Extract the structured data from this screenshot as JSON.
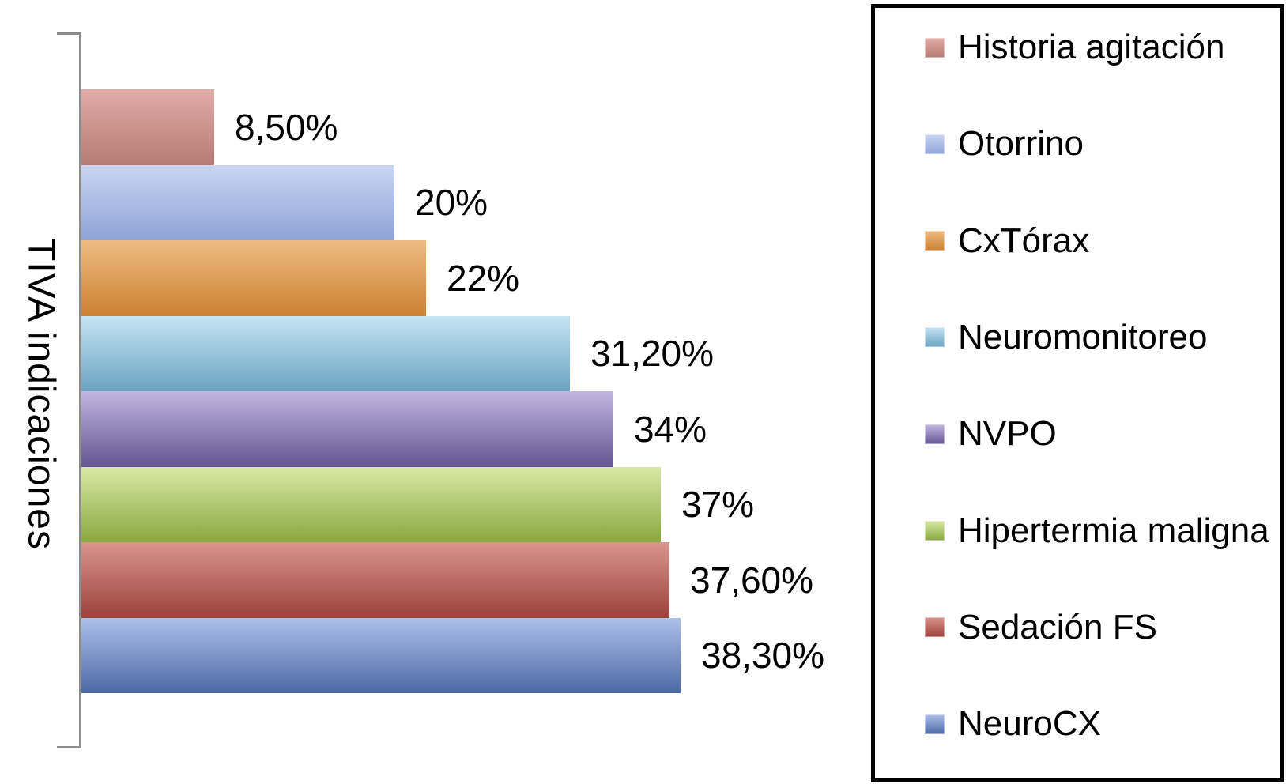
{
  "chart_data": {
    "type": "bar",
    "orientation": "horizontal",
    "title": "",
    "xlabel": "",
    "ylabel": "TIVA indicaciones",
    "xlim": [
      0,
      40
    ],
    "grid": false,
    "legend_position": "right",
    "categories": [
      "Historia agitación",
      "Otorrino",
      "CxTórax",
      "Neuromonitoreo",
      "NVPO",
      "Hipertermia maligna",
      "Sedación FS",
      "NeuroCX"
    ],
    "values": [
      8.5,
      20,
      22,
      31.2,
      34,
      37,
      37.6,
      38.3
    ],
    "value_labels": [
      "8,50%",
      "20%",
      "22%",
      "31,20%",
      "34%",
      "37%",
      "37,60%",
      "38,30%"
    ],
    "bar_colors": [
      {
        "top": "#e2aba6",
        "bottom": "#b57c74"
      },
      {
        "top": "#c9d5f2",
        "bottom": "#8fa3d6"
      },
      {
        "top": "#eebc82",
        "bottom": "#cd8031"
      },
      {
        "top": "#c5e4f4",
        "bottom": "#6ba3c1"
      },
      {
        "top": "#c2b6e2",
        "bottom": "#645590"
      },
      {
        "top": "#d9e9a5",
        "bottom": "#88a840"
      },
      {
        "top": "#da948e",
        "bottom": "#9c423b"
      },
      {
        "top": "#adc0ea",
        "bottom": "#4c69a6"
      }
    ],
    "axis_color": "#8c8c8c",
    "text_color": "#000000",
    "legend_border_color": "#000000"
  }
}
